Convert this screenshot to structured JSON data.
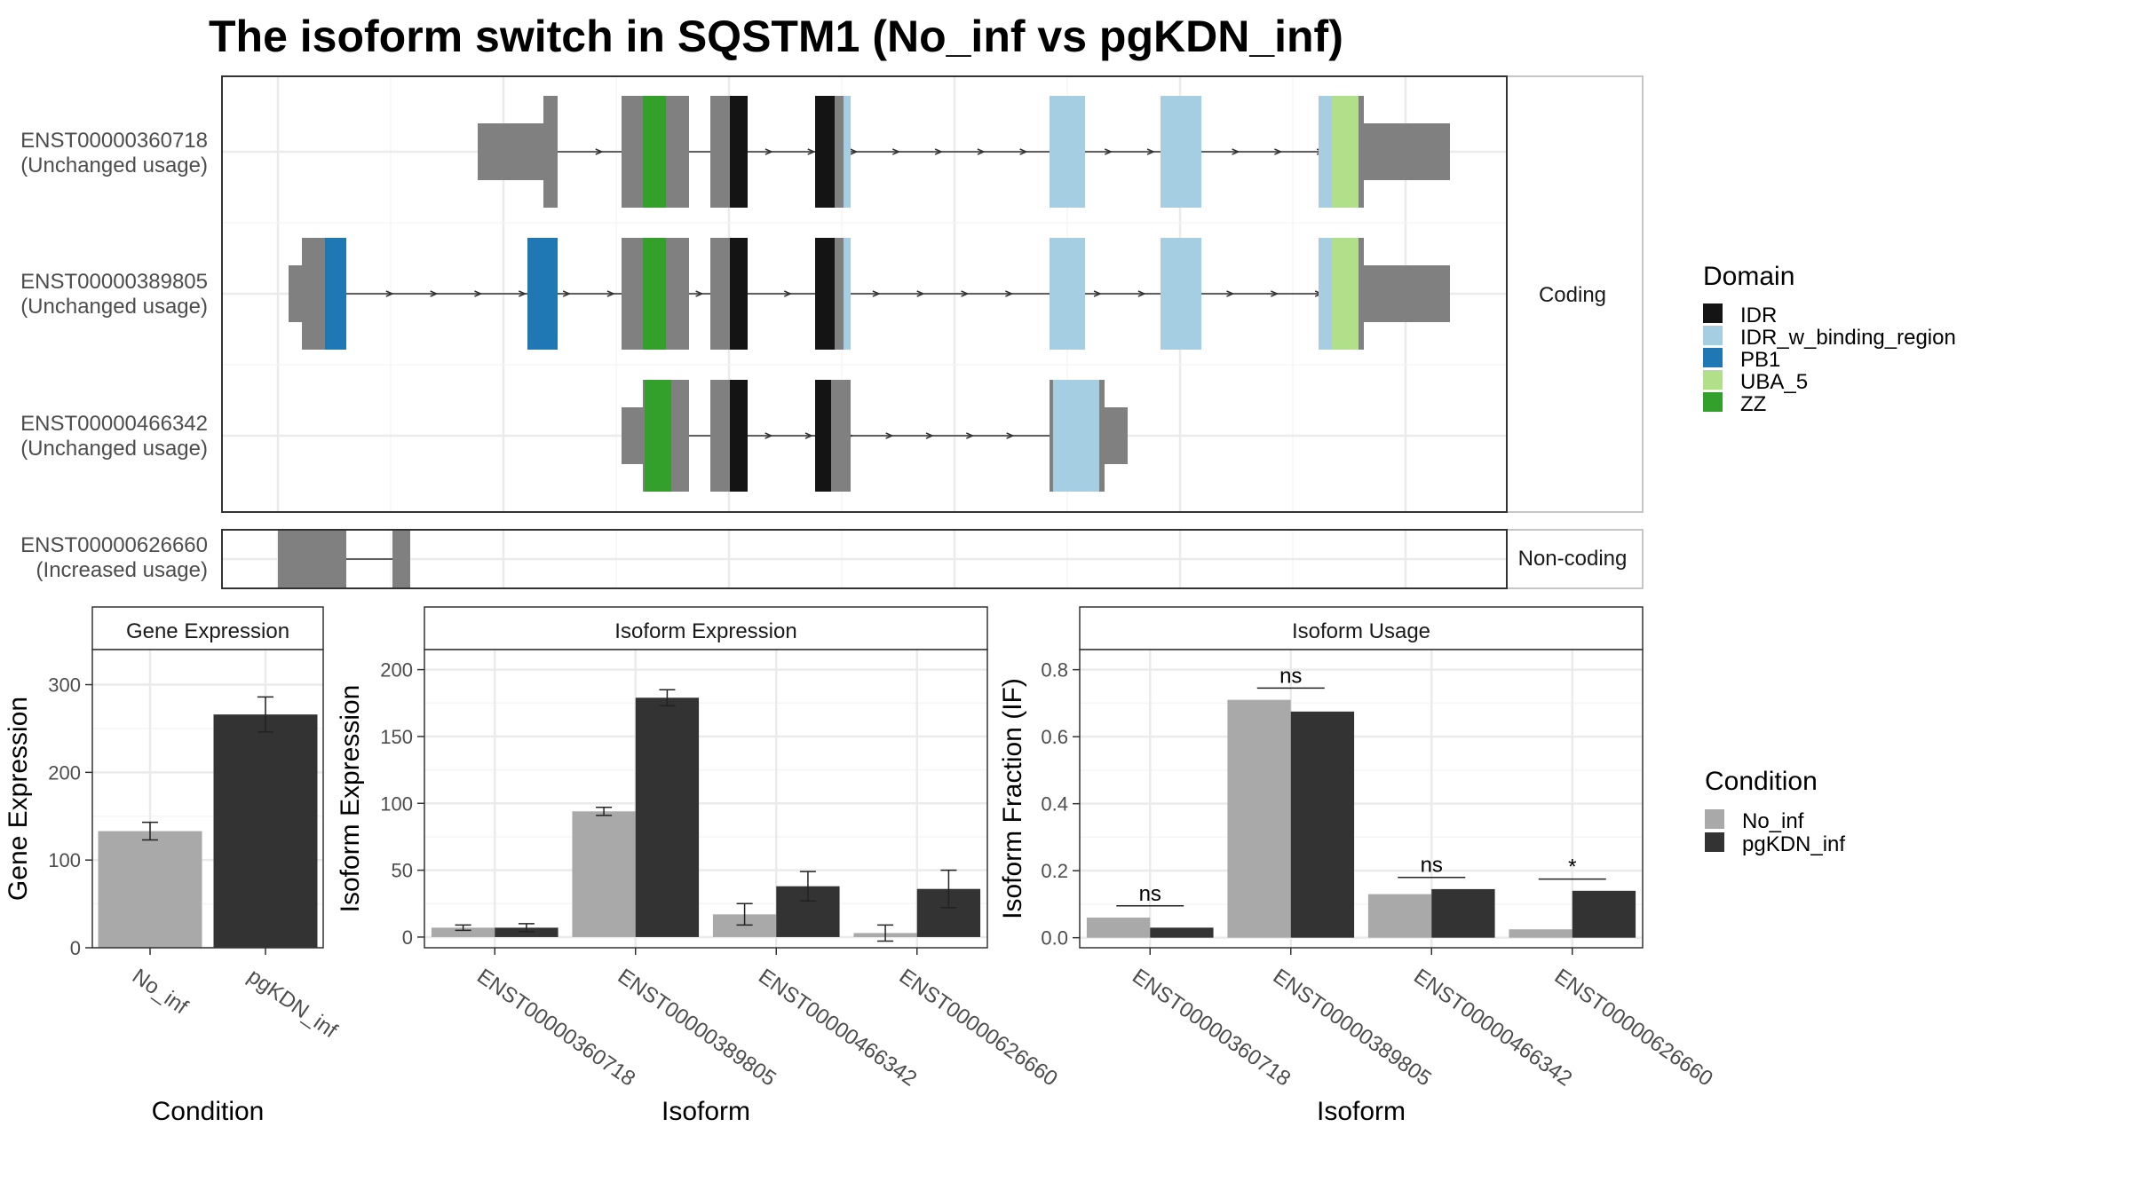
{
  "title": "The isoform switch in SQSTM1 (No_inf vs pgKDN_inf)",
  "colors": {
    "IDR": "#141414",
    "IDR_w_binding_region": "#a6cee3",
    "PB1": "#1f78b4",
    "UBA_5": "#b2df8a",
    "ZZ": "#33a02c",
    "exon": "#808080",
    "No_inf": "#a9a9a9",
    "pgKDN_inf": "#333333"
  },
  "structure": {
    "facets": [
      "Coding",
      "Non-coding"
    ],
    "transcripts": [
      {
        "id": "ENST00000360718",
        "usage": "(Unchanged usage)",
        "group": "Coding"
      },
      {
        "id": "ENST00000389805",
        "usage": "(Unchanged usage)",
        "group": "Coding"
      },
      {
        "id": "ENST00000466342",
        "usage": "(Unchanged usage)",
        "group": "Coding"
      },
      {
        "id": "ENST00000626660",
        "usage": "(Increased usage)",
        "group": "Non-coding"
      }
    ]
  },
  "legend_domain": {
    "title": "Domain",
    "items": [
      "IDR",
      "IDR_w_binding_region",
      "PB1",
      "UBA_5",
      "ZZ"
    ]
  },
  "legend_condition": {
    "title": "Condition",
    "items": [
      "No_inf",
      "pgKDN_inf"
    ]
  },
  "chart_data": [
    {
      "type": "bar",
      "panel_title": "Gene Expression",
      "categories": [
        "No_inf",
        "pgKDN_inf"
      ],
      "values": [
        133,
        266
      ],
      "errors": [
        10,
        20
      ],
      "xlabel": "Condition",
      "ylabel": "Gene Expression",
      "ylim": [
        0,
        340
      ],
      "yticks": [
        0,
        100,
        200,
        300
      ]
    },
    {
      "type": "bar",
      "panel_title": "Isoform Expression",
      "categories": [
        "ENST00000360718",
        "ENST00000389805",
        "ENST00000466342",
        "ENST00000626660"
      ],
      "series": [
        {
          "name": "No_inf",
          "values": [
            7,
            94,
            17,
            3
          ],
          "errors": [
            2,
            3,
            8,
            6
          ]
        },
        {
          "name": "pgKDN_inf",
          "values": [
            7,
            179,
            38,
            36
          ],
          "errors": [
            3,
            6,
            11,
            14
          ]
        }
      ],
      "xlabel": "Isoform",
      "ylabel": "Isoform Expression",
      "ylim": [
        -8,
        215
      ],
      "yticks": [
        0,
        50,
        100,
        150,
        200
      ]
    },
    {
      "type": "bar",
      "panel_title": "Isoform Usage",
      "categories": [
        "ENST00000360718",
        "ENST00000389805",
        "ENST00000466342",
        "ENST00000626660"
      ],
      "series": [
        {
          "name": "No_inf",
          "values": [
            0.06,
            0.71,
            0.13,
            0.025
          ]
        },
        {
          "name": "pgKDN_inf",
          "values": [
            0.03,
            0.675,
            0.145,
            0.14
          ]
        }
      ],
      "significance": [
        "ns",
        "ns",
        "ns",
        "*"
      ],
      "sig_heights": [
        0.095,
        0.745,
        0.18,
        0.175
      ],
      "xlabel": "Isoform",
      "ylabel": "Isoform Fraction (IF)",
      "ylim": [
        -0.03,
        0.86
      ],
      "yticks": [
        0.0,
        0.2,
        0.4,
        0.6,
        0.8
      ]
    }
  ]
}
